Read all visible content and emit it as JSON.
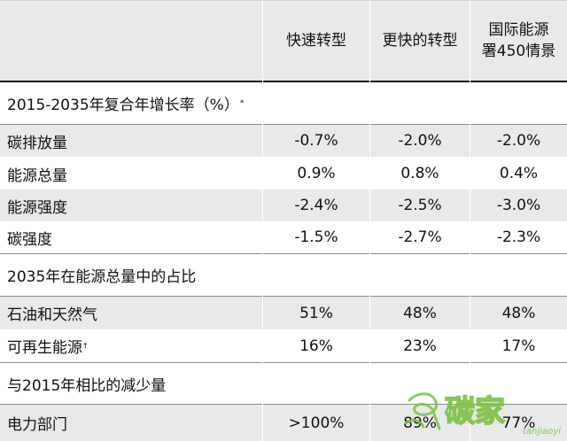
{
  "header": {
    "col1": "快速转型",
    "col2": "更快的转型",
    "col3_line1": "国际能源",
    "col3_line2": "署450情景"
  },
  "sections": [
    {
      "title": "2015-2035年复合年增长率（%）",
      "title_mark": "*",
      "rows": [
        {
          "label": "碳排放量",
          "mark": "",
          "v1": "-0.7%",
          "v2": "-2.0%",
          "v3": "-2.0%"
        },
        {
          "label": "能源总量",
          "mark": "",
          "v1": "0.9%",
          "v2": "0.8%",
          "v3": "0.4%"
        },
        {
          "label": "能源强度",
          "mark": "",
          "v1": "-2.4%",
          "v2": "-2.5%",
          "v3": "-3.0%"
        },
        {
          "label": "碳强度",
          "mark": "",
          "v1": "-1.5%",
          "v2": "-2.7%",
          "v3": "-2.3%"
        }
      ]
    },
    {
      "title": "2035年在能源总量中的占比",
      "title_mark": "",
      "rows": [
        {
          "label": "石油和天然气",
          "mark": "",
          "v1": "51%",
          "v2": "48%",
          "v3": "48%"
        },
        {
          "label": "可再生能源",
          "mark": "†",
          "v1": "16%",
          "v2": "23%",
          "v3": "17%"
        }
      ]
    },
    {
      "title": "与2015年相比的减少量",
      "title_mark": "",
      "rows": [
        {
          "label": "电力部门",
          "mark": "",
          "v1": ">100%",
          "v2": "89%",
          "v3": "77%"
        }
      ]
    }
  ],
  "watermark": {
    "text": "碳家",
    "domain": "tanjiaoyi",
    "color": "#7cc243"
  }
}
